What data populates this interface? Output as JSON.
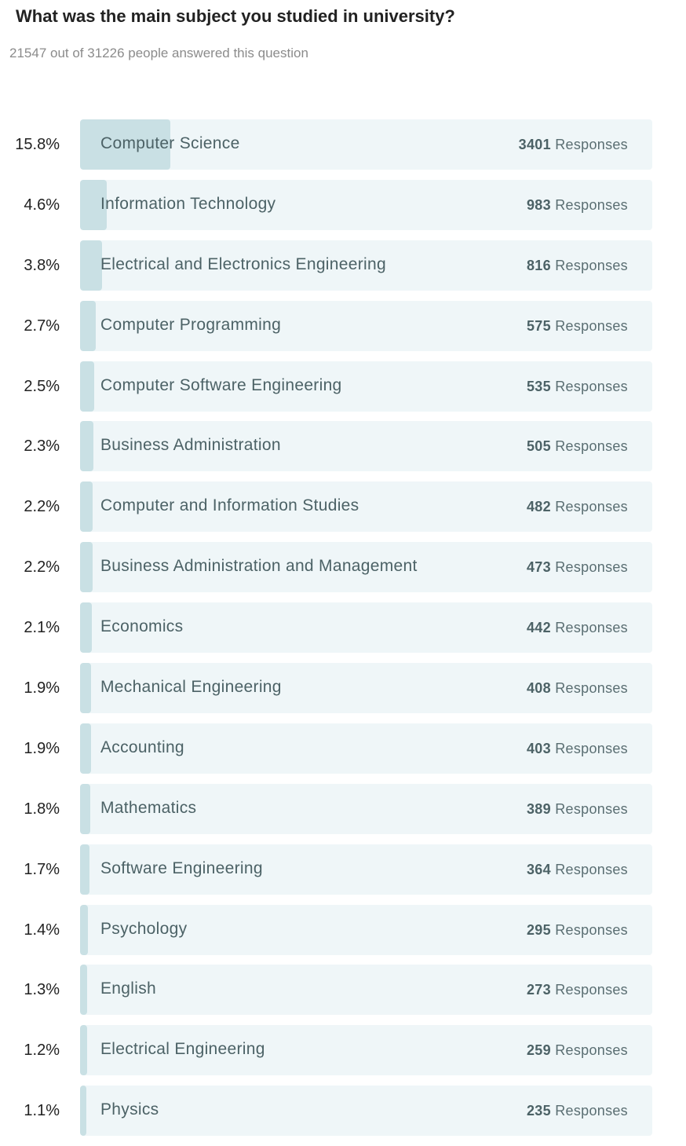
{
  "title": "What was the main subject you studied in university?",
  "subtitle": "21547 out of 31226 people answered this question",
  "responses_word": "Responses",
  "colors": {
    "track": "#eff6f8",
    "fill": "#c9e0e4",
    "text": "#4c6266"
  },
  "chart_data": {
    "type": "bar",
    "title": "What was the main subject you studied in university?",
    "orientation": "horizontal",
    "categories": [
      "Computer Science",
      "Information Technology",
      "Electrical and Electronics Engineering",
      "Computer Programming",
      "Computer Software Engineering",
      "Business Administration",
      "Computer and Information Studies",
      "Business Administration and Management",
      "Economics",
      "Mechanical Engineering",
      "Accounting",
      "Mathematics",
      "Software Engineering",
      "Psychology",
      "English",
      "Electrical Engineering",
      "Physics"
    ],
    "percent_labels": [
      "15.8%",
      "4.6%",
      "3.8%",
      "2.7%",
      "2.5%",
      "2.3%",
      "2.2%",
      "2.2%",
      "2.1%",
      "1.9%",
      "1.9%",
      "1.8%",
      "1.7%",
      "1.4%",
      "1.3%",
      "1.2%",
      "1.1%"
    ],
    "percents": [
      15.8,
      4.6,
      3.8,
      2.7,
      2.5,
      2.3,
      2.2,
      2.2,
      2.1,
      1.9,
      1.9,
      1.8,
      1.7,
      1.4,
      1.3,
      1.2,
      1.1
    ],
    "values": [
      3401,
      983,
      816,
      575,
      535,
      505,
      482,
      473,
      442,
      408,
      403,
      389,
      364,
      295,
      273,
      259,
      235
    ],
    "xlim": [
      0,
      100
    ]
  }
}
